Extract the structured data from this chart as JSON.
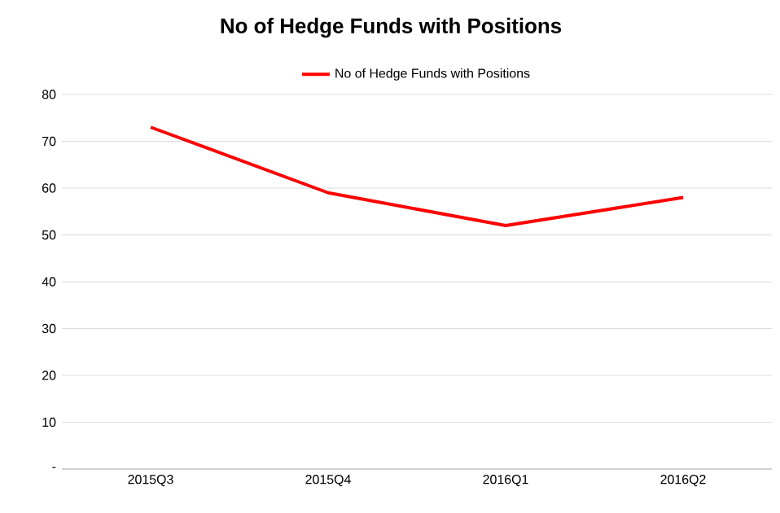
{
  "chart_data": {
    "type": "line",
    "title": "No of Hedge Funds with Positions",
    "categories": [
      "2015Q3",
      "2015Q4",
      "2016Q1",
      "2016Q2"
    ],
    "series": [
      {
        "name": "No of Hedge Funds with Positions",
        "color": "#ff0000",
        "values": [
          73,
          59,
          52,
          58
        ]
      }
    ],
    "ylim": [
      0,
      80
    ],
    "yticks": [
      {
        "value": 0,
        "label": "-"
      },
      10,
      20,
      30,
      40,
      50,
      60,
      70,
      80
    ],
    "grid": "y",
    "legend": "top",
    "line_style": "solid",
    "marker": "none"
  }
}
